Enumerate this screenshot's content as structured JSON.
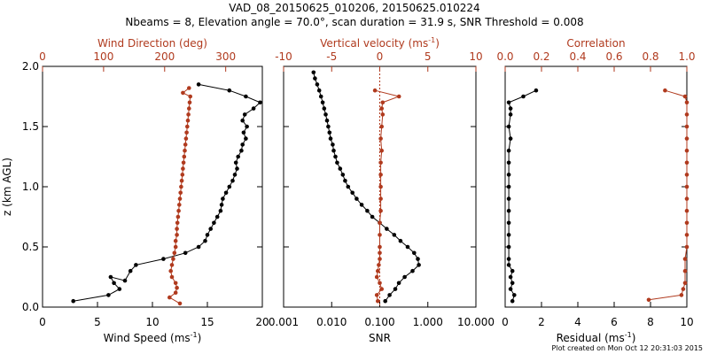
{
  "figure": {
    "title_line1": "VAD_08_20150625_010206, 20150625.010224",
    "title_line2": "Nbeams = 8, Elevation angle = 70.0°, scan duration = 31.9 s, SNR Threshold = 0.008",
    "footer": "Plot created on Mon Oct 12 20:31:03 2015",
    "colors": {
      "primary": "#000000",
      "secondary": "#b03a1e"
    }
  },
  "chart_data": [
    {
      "type": "line",
      "panel": "wind",
      "ylabel": "z (km AGL)",
      "ylim": [
        0,
        2.0
      ],
      "yticks": [
        "0.0",
        "0.5",
        "1.0",
        "1.5",
        "2.0"
      ],
      "bottom_axis": {
        "label": "Wind Speed (ms",
        "label_sup": "-1",
        "label_end": ")",
        "range": [
          0,
          20
        ],
        "ticks": [
          "0",
          "5",
          "10",
          "15",
          "20"
        ],
        "tick_values": [
          0,
          5,
          10,
          15,
          20
        ]
      },
      "top_axis": {
        "label": "Wind Direction (deg)",
        "range": [
          0,
          360
        ],
        "ticks": [
          "0",
          "100",
          "200",
          "300"
        ],
        "tick_values": [
          0,
          100,
          200,
          300
        ]
      },
      "series": [
        {
          "axis": "bottom",
          "color": "#000000",
          "points": [
            [
              2.8,
              0.05
            ],
            [
              6,
              0.1
            ],
            [
              7,
              0.15
            ],
            [
              6.5,
              0.2
            ],
            [
              6.2,
              0.25
            ],
            [
              7.5,
              0.22
            ],
            [
              8,
              0.3
            ],
            [
              8.5,
              0.35
            ],
            [
              11,
              0.4
            ],
            [
              13,
              0.45
            ],
            [
              14.2,
              0.5
            ],
            [
              14.8,
              0.55
            ],
            [
              15,
              0.6
            ],
            [
              15.3,
              0.65
            ],
            [
              15.6,
              0.7
            ],
            [
              15.9,
              0.75
            ],
            [
              16.2,
              0.8
            ],
            [
              16.3,
              0.85
            ],
            [
              16.4,
              0.9
            ],
            [
              16.7,
              0.95
            ],
            [
              17,
              1.0
            ],
            [
              17.3,
              1.05
            ],
            [
              17.5,
              1.1
            ],
            [
              17.7,
              1.15
            ],
            [
              17.6,
              1.2
            ],
            [
              17.8,
              1.25
            ],
            [
              18.1,
              1.3
            ],
            [
              18.2,
              1.35
            ],
            [
              18.5,
              1.4
            ],
            [
              18.3,
              1.45
            ],
            [
              18.6,
              1.5
            ],
            [
              18.2,
              1.55
            ],
            [
              18.4,
              1.6
            ],
            [
              19.2,
              1.65
            ],
            [
              19.8,
              1.7
            ],
            [
              18.5,
              1.75
            ],
            [
              17,
              1.8
            ],
            [
              14.2,
              1.85
            ]
          ]
        },
        {
          "axis": "top",
          "color": "#b03a1e",
          "points": [
            [
              225,
              0.03
            ],
            [
              208,
              0.08
            ],
            [
              218,
              0.12
            ],
            [
              220,
              0.16
            ],
            [
              218,
              0.2
            ],
            [
              212,
              0.25
            ],
            [
              210,
              0.3
            ],
            [
              212,
              0.35
            ],
            [
              214,
              0.4
            ],
            [
              216,
              0.45
            ],
            [
              218,
              0.5
            ],
            [
              218,
              0.55
            ],
            [
              220,
              0.6
            ],
            [
              220,
              0.65
            ],
            [
              221,
              0.7
            ],
            [
              222,
              0.75
            ],
            [
              223,
              0.8
            ],
            [
              224,
              0.85
            ],
            [
              225,
              0.9
            ],
            [
              226,
              0.95
            ],
            [
              227,
              1.0
            ],
            [
              228,
              1.05
            ],
            [
              229,
              1.1
            ],
            [
              230,
              1.15
            ],
            [
              231,
              1.2
            ],
            [
              232,
              1.25
            ],
            [
              233,
              1.3
            ],
            [
              234,
              1.35
            ],
            [
              235,
              1.4
            ],
            [
              236,
              1.45
            ],
            [
              237,
              1.5
            ],
            [
              238,
              1.55
            ],
            [
              239,
              1.6
            ],
            [
              240,
              1.65
            ],
            [
              241,
              1.7
            ],
            [
              242,
              1.75
            ],
            [
              230,
              1.78
            ],
            [
              240,
              1.82
            ]
          ]
        }
      ]
    },
    {
      "type": "line",
      "panel": "snr",
      "ylim": [
        0,
        2.0
      ],
      "bottom_axis": {
        "label": "SNR",
        "scale": "log",
        "range": [
          0.001,
          10
        ],
        "ticks": [
          "0.001",
          "0.010",
          "0.100",
          "1.000",
          "10.000"
        ],
        "tick_values": [
          0.001,
          0.01,
          0.1,
          1,
          10
        ]
      },
      "top_axis": {
        "label": "Vertical velocity (ms",
        "label_sup": "-1",
        "label_end": ")",
        "range": [
          -10,
          10
        ],
        "ticks": [
          "-10",
          "-5",
          "0",
          "5",
          "10"
        ],
        "tick_values": [
          -10,
          -5,
          0,
          5,
          10
        ],
        "zero_line": true
      },
      "series": [
        {
          "axis": "bottom",
          "color": "#000000",
          "points": [
            [
              0.13,
              0.05
            ],
            [
              0.16,
              0.1
            ],
            [
              0.21,
              0.15
            ],
            [
              0.25,
              0.2
            ],
            [
              0.33,
              0.25
            ],
            [
              0.48,
              0.3
            ],
            [
              0.65,
              0.35
            ],
            [
              0.62,
              0.4
            ],
            [
              0.52,
              0.45
            ],
            [
              0.38,
              0.5
            ],
            [
              0.27,
              0.55
            ],
            [
              0.2,
              0.6
            ],
            [
              0.14,
              0.65
            ],
            [
              0.1,
              0.7
            ],
            [
              0.07,
              0.75
            ],
            [
              0.055,
              0.8
            ],
            [
              0.042,
              0.85
            ],
            [
              0.033,
              0.9
            ],
            [
              0.027,
              0.95
            ],
            [
              0.022,
              1.0
            ],
            [
              0.019,
              1.05
            ],
            [
              0.017,
              1.1
            ],
            [
              0.015,
              1.15
            ],
            [
              0.013,
              1.2
            ],
            [
              0.012,
              1.25
            ],
            [
              0.011,
              1.3
            ],
            [
              0.0105,
              1.35
            ],
            [
              0.0095,
              1.4
            ],
            [
              0.009,
              1.45
            ],
            [
              0.0085,
              1.5
            ],
            [
              0.008,
              1.55
            ],
            [
              0.0075,
              1.6
            ],
            [
              0.007,
              1.65
            ],
            [
              0.0065,
              1.7
            ],
            [
              0.006,
              1.75
            ],
            [
              0.0055,
              1.8
            ],
            [
              0.005,
              1.85
            ],
            [
              0.0045,
              1.9
            ],
            [
              0.0042,
              1.95
            ]
          ]
        },
        {
          "axis": "top",
          "color": "#b03a1e",
          "points": [
            [
              -0.2,
              0.05
            ],
            [
              -0.3,
              0.1
            ],
            [
              0.2,
              0.15
            ],
            [
              0,
              0.2
            ],
            [
              -0.3,
              0.25
            ],
            [
              -0.2,
              0.3
            ],
            [
              -0.1,
              0.35
            ],
            [
              0,
              0.4
            ],
            [
              0,
              0.45
            ],
            [
              0,
              0.5
            ],
            [
              0,
              0.6
            ],
            [
              0,
              0.7
            ],
            [
              0.1,
              0.8
            ],
            [
              0.1,
              0.9
            ],
            [
              0.1,
              1.0
            ],
            [
              0.1,
              1.1
            ],
            [
              0.1,
              1.2
            ],
            [
              0.2,
              1.3
            ],
            [
              0.1,
              1.4
            ],
            [
              0.2,
              1.5
            ],
            [
              0.3,
              1.6
            ],
            [
              0.2,
              1.65
            ],
            [
              0.3,
              1.7
            ],
            [
              2,
              1.75
            ],
            [
              -0.5,
              1.8
            ]
          ]
        }
      ]
    },
    {
      "type": "line",
      "panel": "residual",
      "ylim": [
        0,
        2.0
      ],
      "bottom_axis": {
        "label": "Residual  (ms",
        "label_sup": "-1",
        "label_end": ")",
        "range": [
          0,
          10
        ],
        "ticks": [
          "0",
          "2",
          "4",
          "6",
          "8",
          "10"
        ],
        "tick_values": [
          0,
          2,
          4,
          6,
          8,
          10
        ]
      },
      "top_axis": {
        "label": "Correlation",
        "range": [
          0,
          1.0
        ],
        "ticks": [
          "0.0",
          "0.2",
          "0.4",
          "0.6",
          "0.8",
          "1.0"
        ],
        "tick_values": [
          0,
          0.2,
          0.4,
          0.6,
          0.8,
          1.0
        ]
      },
      "series": [
        {
          "axis": "bottom",
          "color": "#000000",
          "points": [
            [
              0.4,
              0.05
            ],
            [
              0.5,
              0.1
            ],
            [
              0.3,
              0.15
            ],
            [
              0.4,
              0.2
            ],
            [
              0.3,
              0.25
            ],
            [
              0.4,
              0.3
            ],
            [
              0.2,
              0.35
            ],
            [
              0.2,
              0.4
            ],
            [
              0.2,
              0.5
            ],
            [
              0.2,
              0.6
            ],
            [
              0.2,
              0.7
            ],
            [
              0.2,
              0.8
            ],
            [
              0.2,
              0.9
            ],
            [
              0.2,
              1.0
            ],
            [
              0.2,
              1.1
            ],
            [
              0.2,
              1.2
            ],
            [
              0.2,
              1.3
            ],
            [
              0.3,
              1.4
            ],
            [
              0.2,
              1.5
            ],
            [
              0.3,
              1.6
            ],
            [
              0.3,
              1.65
            ],
            [
              0.2,
              1.7
            ],
            [
              1.0,
              1.75
            ],
            [
              1.7,
              1.8
            ]
          ]
        },
        {
          "axis": "top",
          "color": "#b03a1e",
          "points": [
            [
              0.79,
              0.06
            ],
            [
              0.97,
              0.1
            ],
            [
              0.98,
              0.15
            ],
            [
              0.99,
              0.2
            ],
            [
              0.99,
              0.3
            ],
            [
              0.99,
              0.4
            ],
            [
              1.0,
              0.5
            ],
            [
              1.0,
              0.6
            ],
            [
              1.0,
              0.7
            ],
            [
              1.0,
              0.8
            ],
            [
              1.0,
              0.9
            ],
            [
              1.0,
              1.0
            ],
            [
              1.0,
              1.1
            ],
            [
              1.0,
              1.2
            ],
            [
              1.0,
              1.3
            ],
            [
              1.0,
              1.4
            ],
            [
              1.0,
              1.5
            ],
            [
              1.0,
              1.6
            ],
            [
              1.0,
              1.7
            ],
            [
              0.99,
              1.75
            ],
            [
              0.88,
              1.8
            ]
          ]
        }
      ]
    }
  ]
}
